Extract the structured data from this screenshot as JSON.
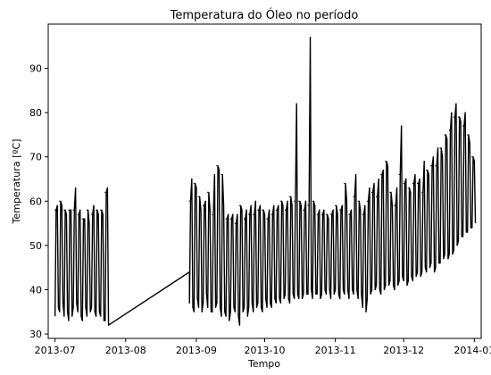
{
  "chart_data": {
    "type": "line",
    "title": "Temperatura do Óleo no período",
    "xlabel": "Tempo",
    "ylabel": "Temperatura [ºC]",
    "x_type": "date",
    "xlim": [
      "2013-06-28",
      "2014-01-04"
    ],
    "ylim": [
      29,
      100
    ],
    "xticks": [
      "2013-07-01",
      "2013-08-01",
      "2013-09-01",
      "2013-10-01",
      "2013-11-01",
      "2013-12-01",
      "2014-01-01"
    ],
    "xtick_labels": [
      "2013-07",
      "2013-08",
      "2013-09",
      "2013-10",
      "2013-11",
      "2013-12",
      "2014-01"
    ],
    "yticks": [
      30,
      40,
      50,
      60,
      70,
      80,
      90
    ],
    "ytick_labels": [
      "30",
      "40",
      "50",
      "60",
      "70",
      "80",
      "90"
    ],
    "grid": false,
    "series": [
      {
        "color": "#000000",
        "x": [
          "2013-07-01",
          "2013-07-02",
          "2013-07-03",
          "2013-07-04",
          "2013-07-05",
          "2013-07-06",
          "2013-07-07",
          "2013-07-08",
          "2013-07-09",
          "2013-07-10",
          "2013-07-11",
          "2013-07-12",
          "2013-07-13",
          "2013-07-14",
          "2013-07-15",
          "2013-07-16",
          "2013-07-17",
          "2013-07-18",
          "2013-07-19",
          "2013-07-20",
          "2013-07-21",
          "2013-07-22",
          "2013-07-23",
          "2013-07-24",
          "2013-08-29",
          "2013-08-30",
          "2013-08-31",
          "2013-09-01",
          "2013-09-02",
          "2013-09-03",
          "2013-09-04",
          "2013-09-05",
          "2013-09-06",
          "2013-09-07",
          "2013-09-08",
          "2013-09-09",
          "2013-09-10",
          "2013-09-11",
          "2013-09-12",
          "2013-09-13",
          "2013-09-14",
          "2013-09-15",
          "2013-09-16",
          "2013-09-17",
          "2013-09-18",
          "2013-09-19",
          "2013-09-20",
          "2013-09-21",
          "2013-09-22",
          "2013-09-23",
          "2013-09-24",
          "2013-09-25",
          "2013-09-26",
          "2013-09-27",
          "2013-09-28",
          "2013-09-29",
          "2013-09-30",
          "2013-10-01",
          "2013-10-02",
          "2013-10-03",
          "2013-10-04",
          "2013-10-05",
          "2013-10-06",
          "2013-10-07",
          "2013-10-08",
          "2013-10-09",
          "2013-10-10",
          "2013-10-11",
          "2013-10-12",
          "2013-10-13",
          "2013-10-14",
          "2013-10-15",
          "2013-10-16",
          "2013-10-17",
          "2013-10-18",
          "2013-10-19",
          "2013-10-20",
          "2013-10-21",
          "2013-10-22",
          "2013-10-23",
          "2013-10-24",
          "2013-10-25",
          "2013-10-26",
          "2013-10-27",
          "2013-10-28",
          "2013-10-29",
          "2013-10-30",
          "2013-10-31",
          "2013-11-01",
          "2013-11-02",
          "2013-11-03",
          "2013-11-04",
          "2013-11-05",
          "2013-11-06",
          "2013-11-07",
          "2013-11-08",
          "2013-11-09",
          "2013-11-10",
          "2013-11-11",
          "2013-11-12",
          "2013-11-13",
          "2013-11-14",
          "2013-11-15",
          "2013-11-16",
          "2013-11-17",
          "2013-11-18",
          "2013-11-19",
          "2013-11-20",
          "2013-11-21",
          "2013-11-22",
          "2013-11-23",
          "2013-11-24",
          "2013-11-25",
          "2013-11-26",
          "2013-11-27",
          "2013-11-28",
          "2013-11-29",
          "2013-11-30",
          "2013-12-01",
          "2013-12-02",
          "2013-12-03",
          "2013-12-04",
          "2013-12-05",
          "2013-12-06",
          "2013-12-07",
          "2013-12-08",
          "2013-12-09",
          "2013-12-10",
          "2013-12-11",
          "2013-12-12",
          "2013-12-13",
          "2013-12-14",
          "2013-12-15",
          "2013-12-16",
          "2013-12-17",
          "2013-12-18",
          "2013-12-19",
          "2013-12-20",
          "2013-12-21",
          "2013-12-22",
          "2013-12-23",
          "2013-12-24",
          "2013-12-25",
          "2013-12-26",
          "2013-12-27",
          "2013-12-28",
          "2013-12-29",
          "2013-12-30",
          "2013-12-31",
          "2014-01-01"
        ],
        "y_min": [
          34,
          36,
          35,
          37,
          34,
          35,
          33,
          34,
          36,
          37,
          35,
          34,
          33,
          36,
          34,
          35,
          36,
          35,
          34,
          35,
          34,
          33,
          33,
          32,
          37,
          36,
          35,
          38,
          36,
          35,
          37,
          39,
          36,
          35,
          35,
          36,
          37,
          36,
          34,
          35,
          34,
          33,
          35,
          36,
          35,
          34,
          32,
          35,
          36,
          34,
          36,
          37,
          35,
          36,
          37,
          36,
          35,
          38,
          36,
          37,
          36,
          38,
          37,
          38,
          37,
          38,
          39,
          38,
          37,
          39,
          38,
          39,
          38,
          38,
          39,
          39,
          39,
          40,
          38,
          39,
          39,
          38,
          39,
          40,
          39,
          40,
          38,
          39,
          40,
          39,
          38,
          40,
          39,
          40,
          38,
          40,
          39,
          40,
          38,
          39,
          36,
          35,
          38,
          39,
          40,
          40,
          41,
          40,
          39,
          40,
          41,
          41,
          42,
          41,
          40,
          41,
          42,
          43,
          42,
          41,
          42,
          43,
          42,
          43,
          44,
          43,
          44,
          45,
          44,
          45,
          46,
          44,
          45,
          46,
          46,
          47,
          48,
          47,
          48,
          48,
          49,
          50,
          51,
          52,
          52,
          53,
          53,
          54,
          54,
          55
        ],
        "y_max": [
          58,
          59,
          60,
          59,
          58,
          57,
          58,
          58,
          58,
          63,
          57,
          58,
          56,
          56,
          58,
          55,
          57,
          59,
          58,
          57,
          58,
          57,
          62,
          63,
          60,
          65,
          64,
          63,
          61,
          58,
          59,
          60,
          62,
          58,
          57,
          66,
          68,
          67,
          66,
          59,
          56,
          57,
          56,
          57,
          55,
          57,
          59,
          58,
          56,
          58,
          57,
          59,
          57,
          60,
          58,
          59,
          58,
          57,
          56,
          58,
          57,
          59,
          58,
          59,
          60,
          59,
          58,
          60,
          61,
          59,
          60,
          82,
          60,
          59,
          58,
          60,
          59,
          97,
          60,
          59,
          57,
          58,
          57,
          58,
          57,
          56,
          57,
          58,
          59,
          57,
          58,
          59,
          64,
          60,
          57,
          58,
          61,
          66,
          60,
          58,
          57,
          59,
          60,
          63,
          62,
          64,
          61,
          65,
          66,
          67,
          69,
          68,
          62,
          59,
          59,
          63,
          66,
          77,
          64,
          65,
          63,
          62,
          64,
          66,
          64,
          65,
          62,
          69,
          67,
          66,
          68,
          70,
          68,
          72,
          72,
          70,
          75,
          74,
          76,
          80,
          79,
          82,
          79,
          78,
          77,
          80,
          75,
          73,
          70,
          69
        ]
      }
    ]
  }
}
